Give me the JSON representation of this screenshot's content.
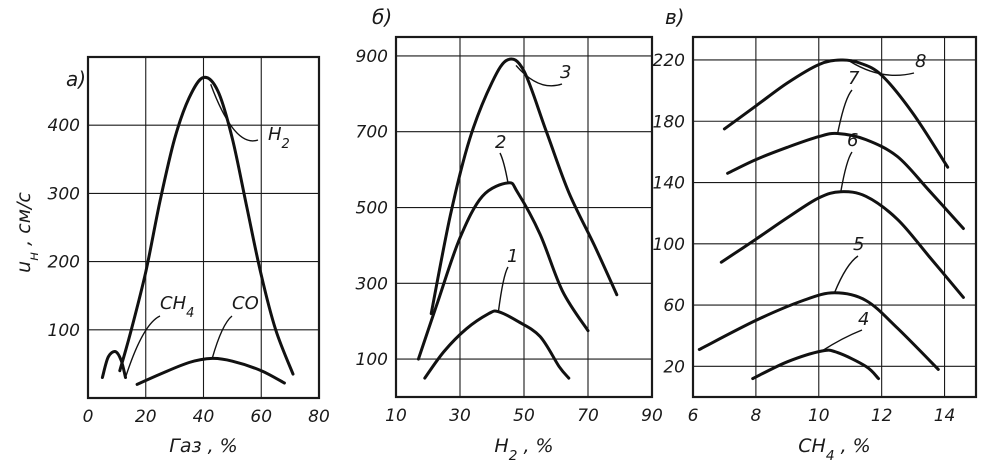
{
  "chart_data": [
    {
      "type": "line",
      "panel_label": "a)",
      "xlabel": "Газ , %",
      "ylabel": "u_н , см/с",
      "ylabel_main": "u",
      "ylabel_sub": "н",
      "ylabel_rest": " , см/с",
      "xlim": [
        0,
        80
      ],
      "ylim": [
        0,
        500
      ],
      "xticks": [
        0,
        20,
        40,
        60,
        80
      ],
      "xtick_labels": [
        "0",
        "20",
        "40",
        "60",
        "80"
      ],
      "yticks": [
        100,
        200,
        300,
        400
      ],
      "ytick_labels": [
        "100",
        "200",
        "300",
        "400"
      ],
      "grid": true,
      "series": [
        {
          "name": "H₂",
          "label_main": "H",
          "label_sub": "2",
          "x": [
            11,
            15,
            20,
            25,
            30,
            35,
            40,
            45,
            50,
            55,
            60,
            65,
            71
          ],
          "y": [
            40,
            100,
            185,
            290,
            380,
            440,
            470,
            450,
            380,
            280,
            180,
            100,
            35
          ]
        },
        {
          "name": "CO",
          "label_main": "CO",
          "label_sub": "",
          "x": [
            17,
            25,
            35,
            43,
            50,
            60,
            68
          ],
          "y": [
            20,
            35,
            52,
            58,
            54,
            40,
            22
          ]
        },
        {
          "name": "CH₄",
          "label_main": "CH",
          "label_sub": "4",
          "x": [
            5,
            7,
            9.5,
            11.5,
            13
          ],
          "y": [
            30,
            60,
            68,
            55,
            30
          ]
        }
      ]
    },
    {
      "type": "line",
      "panel_label": "б)",
      "xlabel": "H₂ , %",
      "xlabel_main": "H",
      "xlabel_sub": "2",
      "xlabel_rest": " , %",
      "xlim": [
        10,
        90
      ],
      "ylim": [
        0,
        950
      ],
      "xticks": [
        10,
        30,
        50,
        70,
        90
      ],
      "xtick_labels": [
        "10",
        "30",
        "50",
        "70",
        "90"
      ],
      "yticks": [
        100,
        300,
        500,
        700,
        900
      ],
      "ytick_labels": [
        "100",
        "300",
        "500",
        "700",
        "900"
      ],
      "grid": true,
      "series": [
        {
          "name": "1",
          "x": [
            19,
            25,
            32,
            39,
            42,
            48,
            55,
            61,
            64
          ],
          "y": [
            50,
            120,
            180,
            220,
            225,
            200,
            160,
            80,
            50
          ]
        },
        {
          "name": "2",
          "x": [
            17,
            23,
            30,
            37,
            45,
            48,
            55,
            62,
            70
          ],
          "y": [
            100,
            250,
            420,
            530,
            565,
            540,
            430,
            280,
            175
          ]
        },
        {
          "name": "3",
          "x": [
            21,
            27,
            33,
            40,
            45,
            50,
            57,
            64,
            72,
            79
          ],
          "y": [
            220,
            480,
            680,
            830,
            890,
            860,
            700,
            540,
            400,
            270
          ]
        }
      ]
    },
    {
      "type": "line",
      "panel_label": "в)",
      "xlabel": "CH₄ , %",
      "xlabel_main": "CH",
      "xlabel_sub": "4",
      "xlabel_rest": " , %",
      "xlim": [
        6,
        15
      ],
      "ylim": [
        0,
        235
      ],
      "xticks": [
        6,
        8,
        10,
        12,
        14
      ],
      "xtick_labels": [
        "6",
        "8",
        "10",
        "12",
        "14"
      ],
      "yticks": [
        20,
        60,
        100,
        140,
        180,
        220
      ],
      "ytick_labels": [
        "20",
        "60",
        "100",
        "140",
        "180",
        "220"
      ],
      "grid": true,
      "series": [
        {
          "name": "4",
          "x": [
            7.9,
            9,
            10.1,
            10.6,
            11.5,
            11.9
          ],
          "y": [
            12,
            23,
            30,
            29,
            20,
            12
          ]
        },
        {
          "name": "5",
          "x": [
            6.2,
            8,
            9.5,
            10.5,
            11.5,
            12.5,
            13.8
          ],
          "y": [
            31,
            50,
            63,
            68,
            63,
            45,
            18
          ]
        },
        {
          "name": "6",
          "x": [
            6.9,
            8,
            9,
            10,
            10.7,
            11.5,
            12.5,
            13.5,
            14.6
          ],
          "y": [
            88,
            103,
            117,
            130,
            134,
            131,
            116,
            92,
            65
          ]
        },
        {
          "name": "7",
          "x": [
            7.1,
            8,
            9,
            10,
            10.6,
            11.5,
            12.5,
            13.5,
            14.6
          ],
          "y": [
            146,
            155,
            163,
            170,
            172,
            168,
            157,
            135,
            110
          ]
        },
        {
          "name": "8",
          "x": [
            7,
            8,
            9,
            10,
            10.7,
            11.3,
            12,
            13,
            14.1
          ],
          "y": [
            175,
            190,
            205,
            217,
            220,
            218,
            210,
            185,
            150
          ]
        }
      ]
    }
  ]
}
